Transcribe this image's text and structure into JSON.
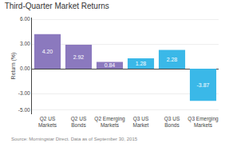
{
  "chart_data": {
    "type": "bar",
    "title": "Third-Quarter Market Returns",
    "categories": [
      "Q2 US\nMarkets",
      "Q2 US\nBonds",
      "Q2 Emerging\nMarkets",
      "Q3 US\nMarket",
      "Q3 US\nBonds",
      "Q3 Emerging\nMarkets"
    ],
    "values": [
      4.2,
      2.92,
      0.84,
      1.28,
      2.28,
      -3.87
    ],
    "value_labels": [
      "4.20",
      "2.92",
      "0.84",
      "1.28",
      "2.28",
      "-3.87"
    ],
    "data_labels": true,
    "colors": [
      "#8b79be",
      "#8b79be",
      "#8b79be",
      "#3ab8e8",
      "#3ab8e8",
      "#3ab8e8"
    ],
    "ylabel": "Return (%)",
    "ylim": [
      -5.5,
      6.2
    ],
    "yticks": [
      {
        "value": 6.0,
        "label": "6.00"
      },
      {
        "value": 3.0,
        "label": "3.00"
      },
      {
        "value": 0.0,
        "label": "0.00"
      },
      {
        "value": -3.0,
        "label": "-3.00"
      },
      {
        "value": -5.0,
        "label": "-5.00"
      }
    ],
    "grid": true,
    "annotations": [
      "Source: Morningstar Direct. Data as of September 30, 2015"
    ]
  }
}
